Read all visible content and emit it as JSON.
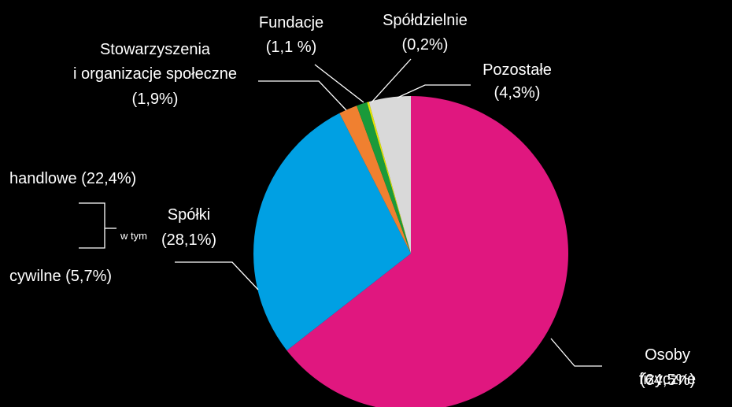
{
  "chart_data": {
    "type": "pie",
    "categories": [
      "Osoby fizyczne",
      "Spółki",
      "Stowarzyszenia\ni organizacje społeczne",
      "Fundacje",
      "Spółdzielnie",
      "Pozostałe"
    ],
    "values": [
      64.5,
      28.1,
      1.9,
      1.1,
      0.2,
      4.3
    ],
    "value_labels": [
      "(64,5%)",
      "(28,1%)",
      "(1,9%)",
      "(1,1 %)",
      "(0,2%)",
      "(4,3%)"
    ],
    "colors": [
      "#e0177f",
      "#00a0e3",
      "#f08030",
      "#1a9a3a",
      "#e6e600",
      "#d9d9d9"
    ],
    "annotations": [
      "handlowe (22,4%)",
      "cywilne (5,7%)",
      "w tym"
    ]
  }
}
